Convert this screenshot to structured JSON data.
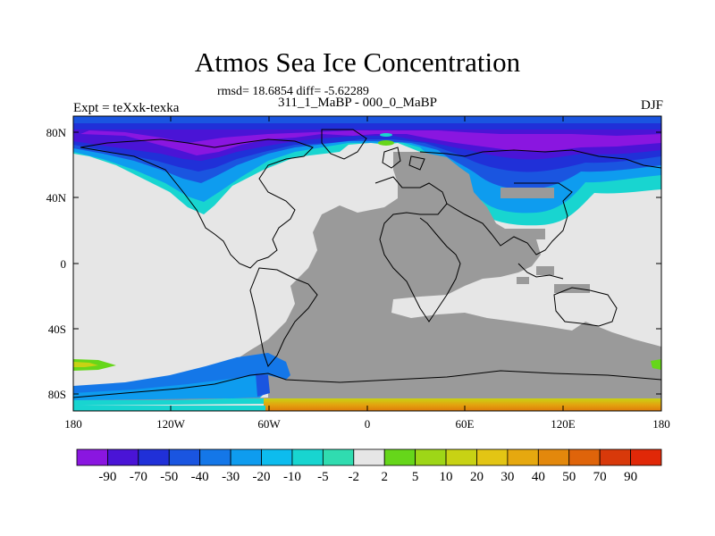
{
  "header": {
    "title": "Atmos Sea Ice Concentration",
    "stats": "rmsd= 18.6854 diff= -5.62289",
    "subtitle": "311_1_MaBP - 000_0_MaBP",
    "experiment": "Expt = teXxk-texka",
    "season": "DJF"
  },
  "map": {
    "lat_ticks": [
      "80N",
      "40N",
      "0",
      "40S",
      "80S"
    ],
    "lon_ticks": [
      "180",
      "120W",
      "60W",
      "0",
      "60E",
      "120E",
      "180"
    ],
    "colors": {
      "land": "#9a9a9a",
      "no_change": "#e6e6e6",
      "coast": "#000000"
    }
  },
  "colorbar": {
    "labels": [
      "-90",
      "-70",
      "-50",
      "-40",
      "-30",
      "-20",
      "-10",
      "-5",
      "-2",
      "2",
      "5",
      "10",
      "20",
      "30",
      "40",
      "50",
      "70",
      "90"
    ],
    "colors": [
      "#8a16e0",
      "#4a14d6",
      "#2030d8",
      "#1a55e0",
      "#1477e8",
      "#0e9cef",
      "#0dbcee",
      "#18d5d0",
      "#30dcb0",
      "#e6e6e6",
      "#66d61a",
      "#9ed617",
      "#c8d214",
      "#e3c514",
      "#e6a80f",
      "#e3880c",
      "#df640a",
      "#d8390a",
      "#e02808"
    ]
  }
}
